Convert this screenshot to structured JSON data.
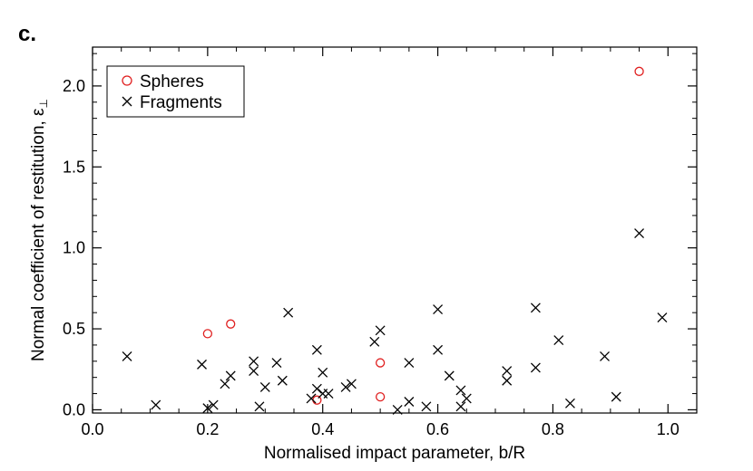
{
  "panel_label": "c.",
  "chart_data": {
    "type": "scatter",
    "xlabel": "Normalised impact parameter, b/R",
    "ylabel": "Normal coefficient of restitution, ε",
    "ylabel_subscript": "⊥",
    "xlim": [
      0.0,
      1.05
    ],
    "ylim": [
      -0.02,
      2.24
    ],
    "x_ticks": [
      0.0,
      0.2,
      0.4,
      0.6,
      0.8,
      1.0
    ],
    "x_tick_labels": [
      "0.0",
      "0.2",
      "0.4",
      "0.6",
      "0.8",
      "1.0"
    ],
    "y_ticks": [
      0.0,
      0.5,
      1.0,
      1.5,
      2.0
    ],
    "y_tick_labels": [
      "0.0",
      "0.5",
      "1.0",
      "1.5",
      "2.0"
    ],
    "grid": false,
    "legend_position": "top-left",
    "series": [
      {
        "name": "Spheres",
        "marker": "circle",
        "color": "#e02020",
        "points": [
          [
            0.2,
            0.47
          ],
          [
            0.24,
            0.53
          ],
          [
            0.39,
            0.06
          ],
          [
            0.5,
            0.29
          ],
          [
            0.5,
            0.08
          ],
          [
            0.95,
            2.09
          ]
        ]
      },
      {
        "name": "Fragments",
        "marker": "cross",
        "color": "#000000",
        "points": [
          [
            0.06,
            0.33
          ],
          [
            0.11,
            0.03
          ],
          [
            0.19,
            0.28
          ],
          [
            0.2,
            0.01
          ],
          [
            0.21,
            0.03
          ],
          [
            0.23,
            0.16
          ],
          [
            0.24,
            0.21
          ],
          [
            0.28,
            0.3
          ],
          [
            0.28,
            0.24
          ],
          [
            0.29,
            0.02
          ],
          [
            0.3,
            0.14
          ],
          [
            0.32,
            0.29
          ],
          [
            0.33,
            0.18
          ],
          [
            0.34,
            0.6
          ],
          [
            0.38,
            0.07
          ],
          [
            0.39,
            0.37
          ],
          [
            0.39,
            0.13
          ],
          [
            0.4,
            0.23
          ],
          [
            0.4,
            0.1
          ],
          [
            0.41,
            0.1
          ],
          [
            0.44,
            0.14
          ],
          [
            0.45,
            0.16
          ],
          [
            0.49,
            0.42
          ],
          [
            0.5,
            0.49
          ],
          [
            0.53,
            0.0
          ],
          [
            0.55,
            0.29
          ],
          [
            0.55,
            0.05
          ],
          [
            0.58,
            0.02
          ],
          [
            0.6,
            0.62
          ],
          [
            0.6,
            0.37
          ],
          [
            0.62,
            0.21
          ],
          [
            0.64,
            0.02
          ],
          [
            0.64,
            0.12
          ],
          [
            0.65,
            0.07
          ],
          [
            0.72,
            0.24
          ],
          [
            0.72,
            0.18
          ],
          [
            0.77,
            0.63
          ],
          [
            0.77,
            0.26
          ],
          [
            0.81,
            0.43
          ],
          [
            0.83,
            0.04
          ],
          [
            0.89,
            0.33
          ],
          [
            0.91,
            0.08
          ],
          [
            0.95,
            1.09
          ],
          [
            0.99,
            0.57
          ]
        ]
      }
    ]
  }
}
